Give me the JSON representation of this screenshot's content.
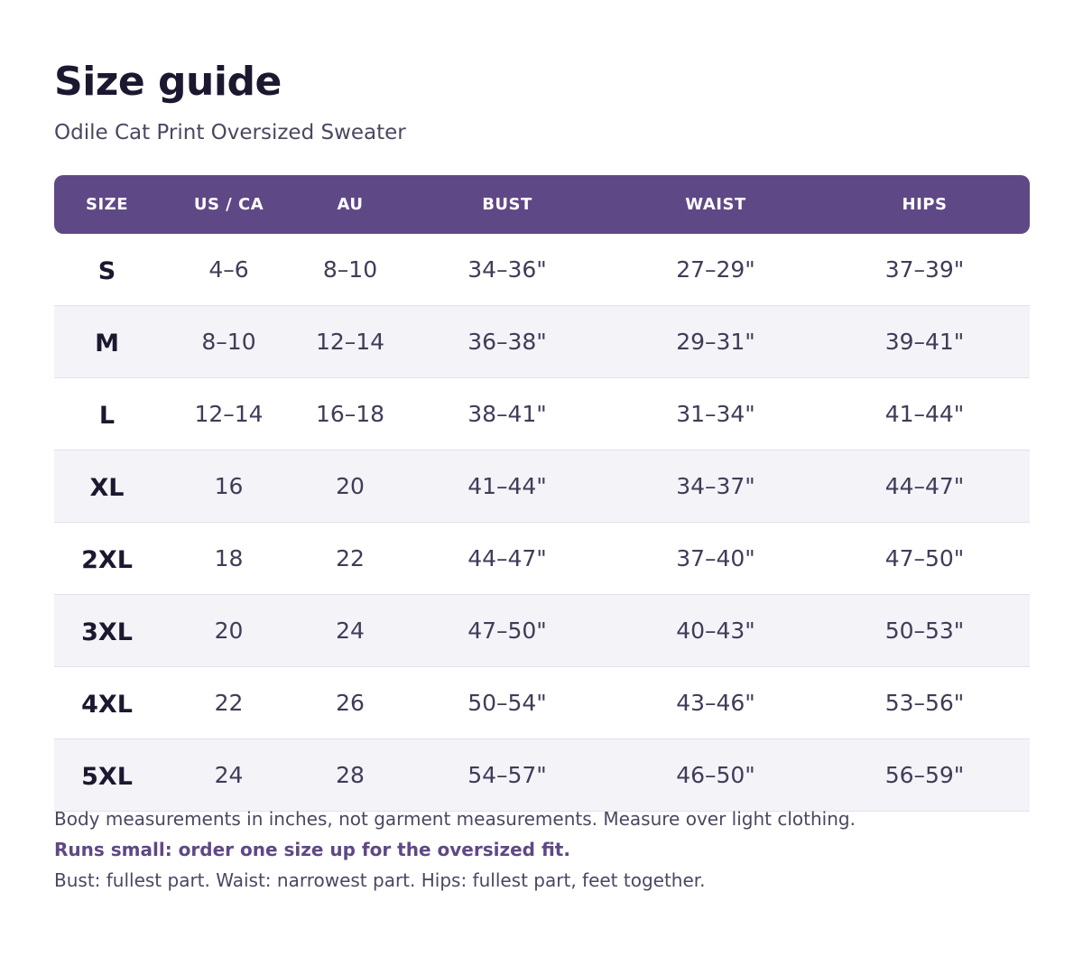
{
  "header": {
    "title": "Size guide",
    "subtitle": "Odile Cat Print Oversized Sweater"
  },
  "table": {
    "columns": [
      "SIZE",
      "US / CA",
      "AU",
      "BUST",
      "WAIST",
      "HIPS"
    ],
    "rows": [
      [
        "S",
        "4–6",
        "8–10",
        "34–36\"",
        "27–29\"",
        "37–39\""
      ],
      [
        "M",
        "8–10",
        "12–14",
        "36–38\"",
        "29–31\"",
        "39–41\""
      ],
      [
        "L",
        "12–14",
        "16–18",
        "38–41\"",
        "31–34\"",
        "41–44\""
      ],
      [
        "XL",
        "16",
        "20",
        "41–44\"",
        "34–37\"",
        "44–47\""
      ],
      [
        "2XL",
        "18",
        "22",
        "44–47\"",
        "37–40\"",
        "47–50\""
      ],
      [
        "3XL",
        "20",
        "24",
        "47–50\"",
        "40–43\"",
        "50–53\""
      ],
      [
        "4XL",
        "22",
        "26",
        "50–54\"",
        "43–46\"",
        "53–56\""
      ],
      [
        "5XL",
        "24",
        "28",
        "54–57\"",
        "46–50\"",
        "56–59\""
      ]
    ]
  },
  "notes": {
    "measurements": "Body measurements in inches, not garment measurements. Measure over light clothing.",
    "fit": "Runs small: order one size up for the oversized fit.",
    "how_to_measure": "Bust: fullest part.  Waist: narrowest part.  Hips: fullest part, feet together."
  },
  "colors": {
    "accent": "#5f4886",
    "title": "#1c1830",
    "text": "#4b4760",
    "stripe": "#f4f3f8"
  }
}
